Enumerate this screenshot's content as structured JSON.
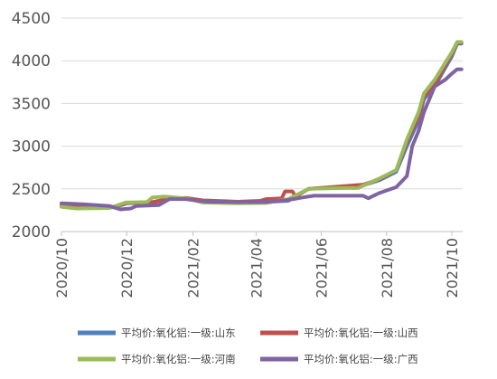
{
  "chart_data": {
    "type": "line",
    "title": "",
    "xlabel": "",
    "ylabel": "",
    "ylim": [
      2000,
      4500
    ],
    "yticks": [
      2000,
      2500,
      3000,
      3500,
      4000,
      4500
    ],
    "xticks": [
      {
        "label": "2020/10",
        "date": "2020-10-01"
      },
      {
        "label": "2020/12",
        "date": "2020-12-01"
      },
      {
        "label": "2021/02",
        "date": "2021-02-01"
      },
      {
        "label": "2021/04",
        "date": "2021-04-01"
      },
      {
        "label": "2021/06",
        "date": "2021-06-01"
      },
      {
        "label": "2021/08",
        "date": "2021-08-01"
      },
      {
        "label": "2021/10",
        "date": "2021-10-01"
      }
    ],
    "grid": "horizontal",
    "legend_position": "bottom",
    "series": [
      {
        "name": "平均价:氧化铝:一级:山东",
        "color": "#4f81bd",
        "points": [
          [
            "2020-10-01",
            2300
          ],
          [
            "2020-10-20",
            2285
          ],
          [
            "2020-11-20",
            2285
          ],
          [
            "2020-12-01",
            2330
          ],
          [
            "2020-12-25",
            2340
          ],
          [
            "2021-01-10",
            2380
          ],
          [
            "2021-01-25",
            2390
          ],
          [
            "2021-02-10",
            2360
          ],
          [
            "2021-03-15",
            2345
          ],
          [
            "2021-04-10",
            2345
          ],
          [
            "2021-05-01",
            2360
          ],
          [
            "2021-05-20",
            2500
          ],
          [
            "2021-06-20",
            2520
          ],
          [
            "2021-07-10",
            2540
          ],
          [
            "2021-07-25",
            2600
          ],
          [
            "2021-08-10",
            2700
          ],
          [
            "2021-08-20",
            3000
          ],
          [
            "2021-08-31",
            3300
          ],
          [
            "2021-09-05",
            3550
          ],
          [
            "2021-09-15",
            3700
          ],
          [
            "2021-09-25",
            3920
          ],
          [
            "2021-10-01",
            4050
          ],
          [
            "2021-10-06",
            4200
          ],
          [
            "2021-10-10",
            4200
          ]
        ]
      },
      {
        "name": "平均价:氧化铝:一级:山西",
        "color": "#c0504d",
        "points": [
          [
            "2020-10-01",
            2310
          ],
          [
            "2020-10-20",
            2290
          ],
          [
            "2020-11-20",
            2290
          ],
          [
            "2020-12-01",
            2335
          ],
          [
            "2020-12-25",
            2345
          ],
          [
            "2021-01-10",
            2385
          ],
          [
            "2021-01-25",
            2395
          ],
          [
            "2021-02-10",
            2365
          ],
          [
            "2021-03-15",
            2350
          ],
          [
            "2021-04-05",
            2360
          ],
          [
            "2021-04-10",
            2380
          ],
          [
            "2021-04-25",
            2390
          ],
          [
            "2021-04-28",
            2470
          ],
          [
            "2021-05-05",
            2470
          ],
          [
            "2021-05-08",
            2410
          ],
          [
            "2021-05-20",
            2500
          ],
          [
            "2021-06-20",
            2530
          ],
          [
            "2021-07-10",
            2550
          ],
          [
            "2021-07-25",
            2610
          ],
          [
            "2021-08-10",
            2720
          ],
          [
            "2021-08-20",
            3050
          ],
          [
            "2021-08-31",
            3350
          ],
          [
            "2021-09-05",
            3580
          ],
          [
            "2021-09-15",
            3720
          ],
          [
            "2021-09-25",
            3950
          ],
          [
            "2021-10-01",
            4080
          ],
          [
            "2021-10-06",
            4210
          ],
          [
            "2021-10-10",
            4210
          ]
        ]
      },
      {
        "name": "平均价:氧化铝:一级:河南",
        "color": "#9bbb59",
        "points": [
          [
            "2020-10-01",
            2290
          ],
          [
            "2020-10-15",
            2270
          ],
          [
            "2020-11-15",
            2275
          ],
          [
            "2020-11-30",
            2340
          ],
          [
            "2020-12-20",
            2345
          ],
          [
            "2020-12-25",
            2400
          ],
          [
            "2021-01-05",
            2410
          ],
          [
            "2021-01-25",
            2390
          ],
          [
            "2021-02-10",
            2340
          ],
          [
            "2021-03-15",
            2330
          ],
          [
            "2021-04-10",
            2335
          ],
          [
            "2021-05-01",
            2380
          ],
          [
            "2021-05-20",
            2500
          ],
          [
            "2021-06-20",
            2510
          ],
          [
            "2021-07-05",
            2510
          ],
          [
            "2021-07-25",
            2620
          ],
          [
            "2021-08-10",
            2720
          ],
          [
            "2021-08-20",
            3080
          ],
          [
            "2021-08-31",
            3400
          ],
          [
            "2021-09-05",
            3620
          ],
          [
            "2021-09-15",
            3780
          ],
          [
            "2021-09-25",
            3980
          ],
          [
            "2021-10-01",
            4100
          ],
          [
            "2021-10-06",
            4220
          ],
          [
            "2021-10-10",
            4220
          ]
        ]
      },
      {
        "name": "平均价:氧化铝:一级:广西",
        "color": "#8064a2",
        "points": [
          [
            "2020-10-01",
            2330
          ],
          [
            "2020-10-20",
            2320
          ],
          [
            "2020-11-15",
            2300
          ],
          [
            "2020-11-25",
            2260
          ],
          [
            "2020-12-05",
            2270
          ],
          [
            "2020-12-10",
            2300
          ],
          [
            "2020-12-31",
            2310
          ],
          [
            "2021-01-10",
            2380
          ],
          [
            "2021-01-25",
            2380
          ],
          [
            "2021-02-15",
            2350
          ],
          [
            "2021-03-15",
            2345
          ],
          [
            "2021-04-10",
            2345
          ],
          [
            "2021-05-01",
            2370
          ],
          [
            "2021-05-15",
            2400
          ],
          [
            "2021-05-25",
            2420
          ],
          [
            "2021-06-20",
            2420
          ],
          [
            "2021-07-10",
            2420
          ],
          [
            "2021-07-15",
            2390
          ],
          [
            "2021-07-25",
            2450
          ],
          [
            "2021-08-10",
            2520
          ],
          [
            "2021-08-20",
            2650
          ],
          [
            "2021-08-25",
            3000
          ],
          [
            "2021-08-31",
            3180
          ],
          [
            "2021-09-05",
            3400
          ],
          [
            "2021-09-15",
            3700
          ],
          [
            "2021-09-25",
            3780
          ],
          [
            "2021-10-01",
            3850
          ],
          [
            "2021-10-06",
            3900
          ],
          [
            "2021-10-10",
            3900
          ]
        ]
      }
    ]
  }
}
